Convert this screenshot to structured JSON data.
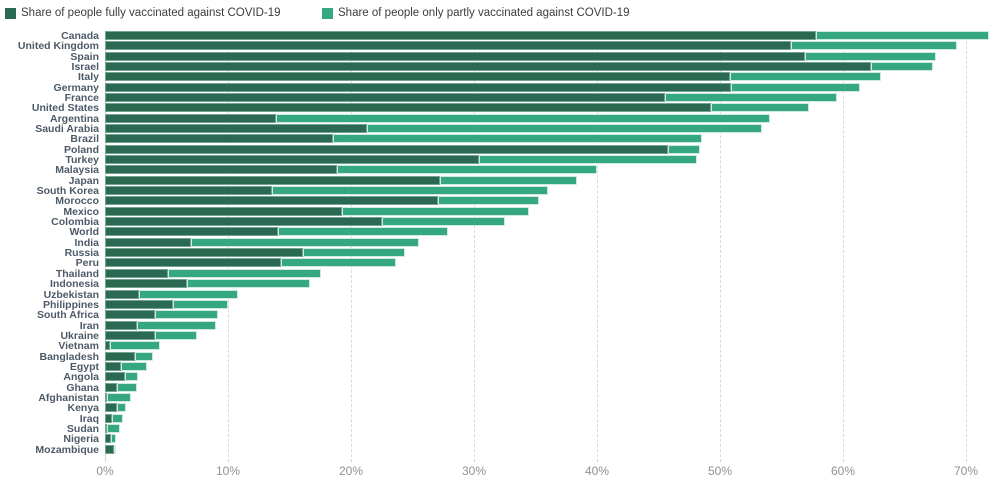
{
  "legend": {
    "fully_label": "Share of people fully vaccinated against COVID-19",
    "partly_label": "Share of people only partly vaccinated against COVID-19"
  },
  "colors": {
    "fully": "#2b6a52",
    "partly": "#35a781",
    "grid": "#d8dadc",
    "country_label": "#4d5a68",
    "tick_label": "#8d9196"
  },
  "chart_data": {
    "type": "bar",
    "orientation": "horizontal",
    "stacked": true,
    "unit": "%",
    "xlim": [
      0,
      73.3
    ],
    "grid": "dashed-vertical",
    "legend_position": "top-left",
    "x_ticks": [
      "0%",
      "10%",
      "20%",
      "30%",
      "40%",
      "50%",
      "60%",
      "70%"
    ],
    "x_tick_values": [
      0,
      10,
      20,
      30,
      40,
      50,
      60,
      70
    ],
    "series_names": [
      "fully",
      "partly"
    ],
    "rows": [
      {
        "country": "Canada",
        "fully": 57.8,
        "partly": 14.1
      },
      {
        "country": "United Kingdom",
        "fully": 55.8,
        "partly": 13.5
      },
      {
        "country": "Spain",
        "fully": 56.9,
        "partly": 10.7
      },
      {
        "country": "Israel",
        "fully": 62.3,
        "partly": 5.0
      },
      {
        "country": "Italy",
        "fully": 50.8,
        "partly": 12.3
      },
      {
        "country": "Germany",
        "fully": 50.9,
        "partly": 10.5
      },
      {
        "country": "France",
        "fully": 45.5,
        "partly": 14.0
      },
      {
        "country": "United States",
        "fully": 49.3,
        "partly": 7.9
      },
      {
        "country": "Argentina",
        "fully": 13.9,
        "partly": 40.2
      },
      {
        "country": "Saudi Arabia",
        "fully": 21.3,
        "partly": 32.1
      },
      {
        "country": "Brazil",
        "fully": 18.5,
        "partly": 30.0
      },
      {
        "country": "Poland",
        "fully": 45.8,
        "partly": 2.6
      },
      {
        "country": "Turkey",
        "fully": 30.4,
        "partly": 17.7
      },
      {
        "country": "Malaysia",
        "fully": 18.9,
        "partly": 21.1
      },
      {
        "country": "Japan",
        "fully": 27.2,
        "partly": 11.2
      },
      {
        "country": "South Korea",
        "fully": 13.6,
        "partly": 22.4
      },
      {
        "country": "Morocco",
        "fully": 27.1,
        "partly": 8.2
      },
      {
        "country": "Mexico",
        "fully": 19.3,
        "partly": 15.2
      },
      {
        "country": "Colombia",
        "fully": 22.5,
        "partly": 10.0
      },
      {
        "country": "World",
        "fully": 14.1,
        "partly": 13.8
      },
      {
        "country": "India",
        "fully": 7.0,
        "partly": 18.5
      },
      {
        "country": "Russia",
        "fully": 16.1,
        "partly": 8.3
      },
      {
        "country": "Peru",
        "fully": 14.3,
        "partly": 9.4
      },
      {
        "country": "Thailand",
        "fully": 5.1,
        "partly": 12.5
      },
      {
        "country": "Indonesia",
        "fully": 6.7,
        "partly": 10.0
      },
      {
        "country": "Uzbekistan",
        "fully": 2.8,
        "partly": 8.0
      },
      {
        "country": "Philippines",
        "fully": 5.5,
        "partly": 4.5
      },
      {
        "country": "South Africa",
        "fully": 4.1,
        "partly": 5.1
      },
      {
        "country": "Iran",
        "fully": 2.6,
        "partly": 6.4
      },
      {
        "country": "Ukraine",
        "fully": 4.1,
        "partly": 3.4
      },
      {
        "country": "Vietnam",
        "fully": 0.4,
        "partly": 4.1
      },
      {
        "country": "Bangladesh",
        "fully": 2.4,
        "partly": 1.5
      },
      {
        "country": "Egypt",
        "fully": 1.3,
        "partly": 2.1
      },
      {
        "country": "Angola",
        "fully": 1.6,
        "partly": 1.1
      },
      {
        "country": "Ghana",
        "fully": 1.0,
        "partly": 1.6
      },
      {
        "country": "Afghanistan",
        "fully": 0.2,
        "partly": 1.9
      },
      {
        "country": "Kenya",
        "fully": 1.0,
        "partly": 0.7
      },
      {
        "country": "Iraq",
        "fully": 0.6,
        "partly": 0.9
      },
      {
        "country": "Sudan",
        "fully": 0.2,
        "partly": 1.0
      },
      {
        "country": "Nigeria",
        "fully": 0.5,
        "partly": 0.4
      },
      {
        "country": "Mozambique",
        "fully": 0.7,
        "partly": 0.2
      }
    ]
  }
}
